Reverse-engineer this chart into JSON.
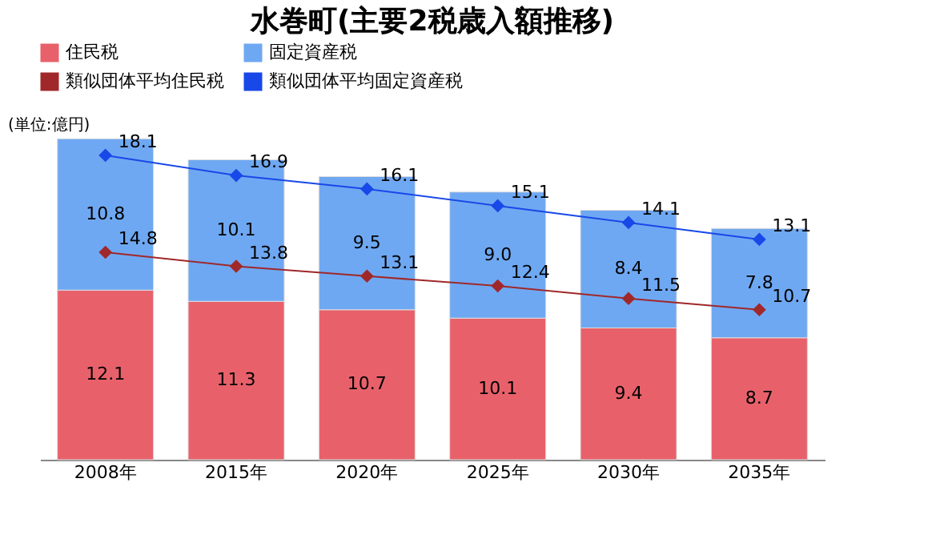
{
  "chart_data": {
    "type": "bar",
    "title": "水巻町(主要2税歳入額推移)",
    "annotations": [
      "(単位:億円)"
    ],
    "categories": [
      "2008年",
      "2015年",
      "2020年",
      "2025年",
      "2030年",
      "2035年"
    ],
    "stacked": true,
    "legend": "top",
    "marker": "diamond",
    "tick_labels": "x",
    "series": [
      {
        "name": "住民税",
        "color": "#e8616a",
        "values": [
          12.1,
          11.3,
          10.7,
          10.1,
          9.4,
          8.7
        ],
        "value_labels": [
          "12.1",
          "11.3",
          "10.7",
          "10.1",
          "9.4",
          "8.7"
        ]
      },
      {
        "name": "固定資産税",
        "color": "#6fa8f2",
        "values": [
          10.8,
          10.1,
          9.5,
          9.0,
          8.4,
          7.8
        ],
        "value_labels": [
          "10.8",
          "10.1",
          "9.5",
          "9.0",
          "8.4",
          "7.8"
        ]
      },
      {
        "name": "類似団体平均住民税",
        "type": "line",
        "color": "#a0282a",
        "values": [
          14.8,
          13.8,
          13.1,
          12.4,
          11.5,
          10.7
        ],
        "value_labels": [
          "14.8",
          "13.8",
          "13.1",
          "12.4",
          "11.5",
          "10.7"
        ]
      },
      {
        "name": "類似団体平均固定資産税",
        "type": "line",
        "axis": "y2",
        "color": "#1848e8",
        "values": [
          18.1,
          16.9,
          16.1,
          15.1,
          14.1,
          13.1
        ],
        "value_labels": [
          "18.1",
          "16.9",
          "16.1",
          "15.1",
          "14.1",
          "13.1"
        ]
      }
    ]
  }
}
